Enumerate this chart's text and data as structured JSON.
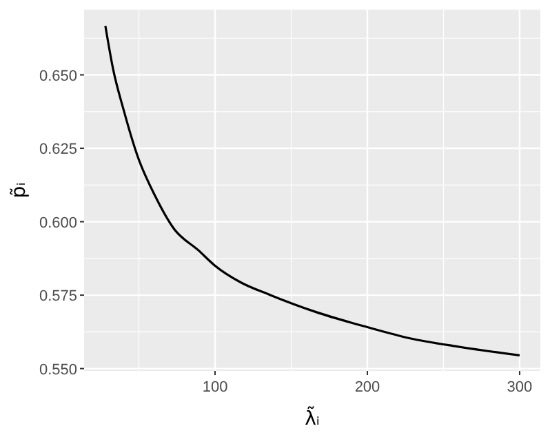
{
  "chart_data": {
    "type": "line",
    "xlabel": "λ̃ᵢ",
    "ylabel": "p̃ᵢ",
    "xlim": [
      14,
      313.6
    ],
    "ylim": [
      0.5492,
      0.6722
    ],
    "xticks": [
      100,
      200,
      300
    ],
    "yticks": [
      {
        "value": 0.55,
        "label": "0.550"
      },
      0.575,
      {
        "value": 0.6,
        "label": "0.600"
      },
      0.625,
      {
        "value": 0.65,
        "label": "0.650"
      }
    ],
    "grid": true,
    "series": [
      {
        "color": "#000000",
        "x": [
          28,
          33,
          40,
          49,
          61,
          73,
          89,
          100,
          117,
          136,
          166,
          200,
          228,
          259,
          300
        ],
        "values": [
          0.6666,
          0.6521,
          0.638,
          0.6225,
          0.6084,
          0.5976,
          0.5903,
          0.585,
          0.5793,
          0.5751,
          0.5693,
          0.5641,
          0.5603,
          0.5575,
          0.5545
        ]
      }
    ]
  }
}
